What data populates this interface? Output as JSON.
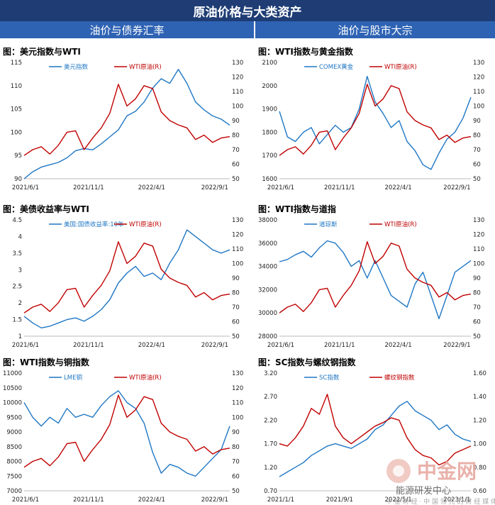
{
  "header": {
    "title": "原油价格与大类资产",
    "left_section": "油价与债券汇率",
    "right_section": "油价与股市大宗"
  },
  "colors": {
    "blue": "#1f77c4",
    "red": "#c00000",
    "header_dark": "#1f3d74",
    "header_mid": "#2e63b4"
  },
  "watermark": {
    "brand": "中金网",
    "org": "能源研发中心",
    "tagline": "中 金 财 经 · 中 国 领 先 的 财 经 媒 体"
  },
  "chart_data": [
    {
      "id": "usd-wti",
      "type": "line",
      "title": "图：美元指数与WTI",
      "xticks": [
        "2021/6/1",
        "2021/11/1",
        "2022/4/1",
        "2022/9/1"
      ],
      "left_axis": {
        "ticks": [
          "90",
          "95",
          "100",
          "105",
          "110",
          "115"
        ],
        "range": [
          90,
          115
        ]
      },
      "right_axis": {
        "ticks": [
          "50",
          "60",
          "70",
          "80",
          "90",
          "100",
          "110",
          "120",
          "130"
        ],
        "range": [
          50,
          130
        ]
      },
      "series": [
        {
          "name": "美元指数",
          "color": "#1f77c4",
          "axis": "left",
          "values": [
            90,
            91.5,
            92.5,
            93,
            93.5,
            94.5,
            96,
            96.5,
            96.2,
            97.5,
            99,
            100.5,
            103.5,
            104.5,
            106.5,
            109.5,
            111.5,
            110.5,
            113.5,
            110.5,
            106.5,
            104.8,
            103.5,
            102.8,
            101.5
          ]
        },
        {
          "name": "WTI原油(R)",
          "color": "#c00000",
          "axis": "right",
          "values": [
            66,
            70,
            72,
            67,
            73,
            82,
            83,
            70,
            78,
            85,
            95,
            115,
            100,
            105,
            114,
            112,
            96,
            90,
            87,
            85,
            77,
            80,
            75,
            78,
            79
          ]
        }
      ]
    },
    {
      "id": "wti-gold",
      "type": "line",
      "title": "图：WTI指数与黄金指数",
      "xticks": [
        "2021/6/1",
        "2021/11/1",
        "2022/4/1",
        "2022/9/1"
      ],
      "left_axis": {
        "ticks": [
          "1600",
          "1700",
          "1800",
          "1900",
          "2000",
          "2100"
        ],
        "range": [
          1600,
          2100
        ]
      },
      "right_axis": {
        "ticks": [
          "50",
          "60",
          "70",
          "80",
          "90",
          "100",
          "110",
          "120",
          "130"
        ],
        "range": [
          50,
          130
        ]
      },
      "series": [
        {
          "name": "COMEX黄金",
          "color": "#1f77c4",
          "axis": "left",
          "values": [
            1890,
            1780,
            1760,
            1800,
            1820,
            1750,
            1790,
            1830,
            1800,
            1820,
            1900,
            2040,
            1930,
            1880,
            1820,
            1850,
            1760,
            1720,
            1660,
            1640,
            1710,
            1770,
            1800,
            1860,
            1950
          ]
        },
        {
          "name": "WTI原油(R)",
          "color": "#c00000",
          "axis": "right",
          "values": [
            66,
            70,
            72,
            67,
            73,
            82,
            83,
            70,
            78,
            85,
            95,
            115,
            100,
            105,
            114,
            112,
            96,
            90,
            87,
            85,
            77,
            80,
            75,
            78,
            79
          ]
        }
      ]
    },
    {
      "id": "ust-wti",
      "type": "line",
      "title": "图：美债收益率与WTI",
      "xticks": [
        "2021/6/1",
        "2021/11/1",
        "2022/4/1",
        "2022/9/1"
      ],
      "left_axis": {
        "ticks": [
          "1",
          "1.5",
          "2",
          "2.5",
          "3",
          "3.5",
          "4",
          "4.5"
        ],
        "range": [
          1,
          4.5
        ]
      },
      "right_axis": {
        "ticks": [
          "50",
          "60",
          "70",
          "80",
          "90",
          "100",
          "110",
          "120",
          "130"
        ],
        "range": [
          50,
          130
        ]
      },
      "series": [
        {
          "name": "美国:国债收益率:10年",
          "color": "#1f77c4",
          "axis": "left",
          "values": [
            1.6,
            1.4,
            1.25,
            1.3,
            1.4,
            1.5,
            1.55,
            1.45,
            1.6,
            1.8,
            2.1,
            2.6,
            2.9,
            3.1,
            2.8,
            2.9,
            2.7,
            3.2,
            3.6,
            4.2,
            4.0,
            3.8,
            3.6,
            3.5,
            3.6
          ]
        },
        {
          "name": "WTI原油(R)",
          "color": "#c00000",
          "axis": "right",
          "values": [
            66,
            70,
            72,
            67,
            73,
            82,
            83,
            70,
            78,
            85,
            95,
            115,
            100,
            105,
            114,
            112,
            96,
            90,
            87,
            85,
            77,
            80,
            75,
            78,
            79
          ]
        }
      ]
    },
    {
      "id": "wti-dow",
      "type": "line",
      "title": "图：WTI指数与道指",
      "xticks": [
        "2021/6/1",
        "2021/11/1",
        "2022/4/1",
        "2022/9/1"
      ],
      "left_axis": {
        "ticks": [
          "28000",
          "30000",
          "32000",
          "34000",
          "36000",
          "38000"
        ],
        "range": [
          28000,
          38000
        ]
      },
      "right_axis": {
        "ticks": [
          "50",
          "60",
          "70",
          "80",
          "90",
          "100",
          "110",
          "120",
          "130"
        ],
        "range": [
          50,
          130
        ]
      },
      "series": [
        {
          "name": "道琼斯",
          "color": "#1f77c4",
          "axis": "left",
          "values": [
            34400,
            34600,
            35000,
            35300,
            34800,
            35600,
            36200,
            36000,
            35200,
            34000,
            34500,
            33000,
            34500,
            33000,
            31500,
            31000,
            30500,
            32500,
            33500,
            31500,
            29500,
            31500,
            33500,
            34000,
            34500
          ]
        },
        {
          "name": "WTI原油(R)",
          "color": "#c00000",
          "axis": "right",
          "values": [
            66,
            70,
            72,
            67,
            73,
            82,
            83,
            70,
            78,
            85,
            95,
            115,
            100,
            105,
            114,
            112,
            96,
            90,
            87,
            85,
            77,
            80,
            75,
            78,
            79
          ]
        }
      ]
    },
    {
      "id": "wti-copper",
      "type": "line",
      "title": "图：WTI指数与铜指数",
      "xticks": [
        "2021/6/1",
        "2021/11/1",
        "2022/4/1",
        "2022/9/1"
      ],
      "left_axis": {
        "ticks": [
          "7000",
          "7500",
          "8000",
          "8500",
          "9000",
          "9500",
          "10000",
          "10500",
          "11000"
        ],
        "range": [
          7000,
          11000
        ]
      },
      "right_axis": {
        "ticks": [
          "50",
          "60",
          "70",
          "80",
          "90",
          "100",
          "110",
          "120",
          "130"
        ],
        "range": [
          50,
          130
        ]
      },
      "series": [
        {
          "name": "LME铜",
          "color": "#1f77c4",
          "axis": "left",
          "values": [
            10000,
            9500,
            9200,
            9500,
            9300,
            9800,
            9500,
            9600,
            9500,
            9900,
            10200,
            10400,
            10000,
            9800,
            9300,
            8300,
            7600,
            7900,
            7800,
            7600,
            7500,
            7800,
            8100,
            8400,
            9200
          ]
        },
        {
          "name": "WTI原油(R)",
          "color": "#c00000",
          "axis": "right",
          "values": [
            66,
            70,
            72,
            67,
            73,
            82,
            83,
            70,
            78,
            85,
            95,
            115,
            100,
            105,
            114,
            112,
            96,
            90,
            87,
            85,
            77,
            80,
            75,
            78,
            79
          ]
        }
      ]
    },
    {
      "id": "sc-rebar",
      "type": "line",
      "title": "图：SC指数与螺纹钢指数",
      "xticks": [
        "2021/1/1",
        "2021/9/1",
        "2022/5/1",
        "2023/1/1"
      ],
      "left_axis": {
        "ticks": [
          "0.70",
          "1.20",
          "1.70",
          "2.20",
          "2.70",
          "3.20"
        ],
        "range": [
          0.7,
          3.2
        ]
      },
      "right_axis": {
        "ticks": [
          "0.60",
          "0.80",
          "1.00",
          "1.20",
          "1.40",
          "1.60"
        ],
        "range": [
          0.6,
          1.6
        ]
      },
      "series": [
        {
          "name": "SC指数",
          "color": "#1f77c4",
          "axis": "left",
          "values": [
            1.0,
            1.1,
            1.2,
            1.3,
            1.45,
            1.55,
            1.65,
            1.7,
            1.65,
            1.6,
            1.7,
            1.8,
            2.0,
            2.1,
            2.3,
            2.5,
            2.6,
            2.4,
            2.3,
            2.2,
            2.0,
            2.1,
            1.9,
            1.8,
            1.75
          ]
        },
        {
          "name": "螺纹钢指数",
          "color": "#c00000",
          "axis": "right",
          "values": [
            1.0,
            0.98,
            1.05,
            1.15,
            1.3,
            1.25,
            1.42,
            1.15,
            1.05,
            1.0,
            1.05,
            1.1,
            1.15,
            1.18,
            1.22,
            1.2,
            1.05,
            0.95,
            0.9,
            0.88,
            0.82,
            0.85,
            0.92,
            0.95,
            0.98
          ]
        }
      ]
    }
  ]
}
